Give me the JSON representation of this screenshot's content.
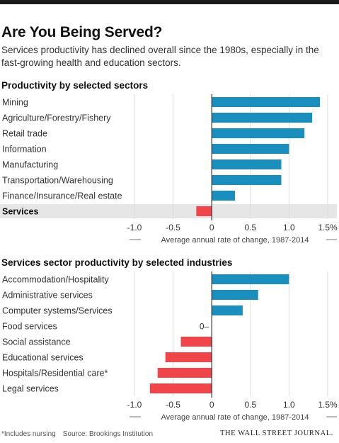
{
  "title": "Are You Being Served?",
  "subtitle": "Services productivity has declined overall since the 1980s, especially in the fast-growing health and education sectors.",
  "footnote": "*Includes nursing",
  "source": "Source: Brookings Institution",
  "publisher": "THE WALL STREET JOURNAL.",
  "colors": {
    "positive": "#1a8fbe",
    "negative": "#f0454a",
    "highlight_row": "#e6e6e6",
    "zero_line": "#333333",
    "grid": "#dddddd"
  },
  "chart_data": [
    {
      "type": "bar",
      "orientation": "horizontal",
      "title": "Productivity by selected sectors",
      "xlabel": "Average annual rate of change, 1987-2014",
      "xlim": [
        -1.0,
        1.5
      ],
      "xticks": [
        "-1.0",
        "-0.5",
        "0",
        "0.5",
        "1.0",
        "1.5%"
      ],
      "categories": [
        "Mining",
        "Agriculture/Forestry/Fishery",
        "Retail trade",
        "Information",
        "Manufacturing",
        "Transportation/Warehousing",
        "Finance/Insurance/Real estate",
        "Services"
      ],
      "values": [
        1.4,
        1.3,
        1.2,
        1.0,
        0.9,
        0.9,
        0.3,
        -0.2
      ],
      "highlight": "Services"
    },
    {
      "type": "bar",
      "orientation": "horizontal",
      "title": "Services sector productivity by selected industries",
      "xlabel": "Average annual rate of change, 1987-2014",
      "xlim": [
        -1.0,
        1.5
      ],
      "xticks": [
        "-1.0",
        "-0.5",
        "0",
        "0.5",
        "1.0",
        "1.5%"
      ],
      "categories": [
        "Accommodation/Hospitality",
        "Administrative services",
        "Computer systems/Services",
        "Food services",
        "Social assistance",
        "Educational services",
        "Hospitals/Residential care*",
        "Legal services"
      ],
      "values": [
        1.0,
        0.6,
        0.4,
        0,
        -0.4,
        -0.6,
        -0.7,
        -0.8
      ],
      "value_labels": {
        "Food services": "0"
      }
    }
  ]
}
